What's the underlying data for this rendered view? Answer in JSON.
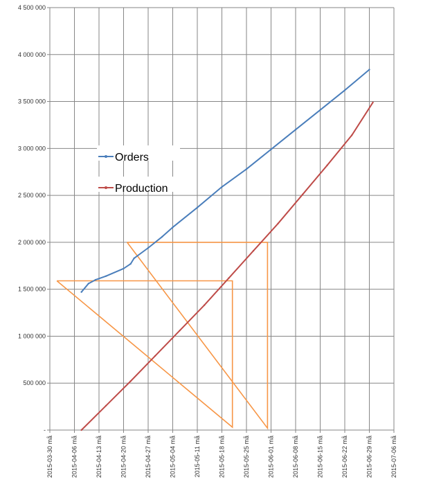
{
  "chart_data": {
    "type": "line",
    "title": "",
    "xlabel": "",
    "ylabel": "",
    "grid": true,
    "legend": "inside left, upper middle",
    "x_tick_labels": [
      "2015-03-30 må",
      "2015-04-06 må",
      "2015-04-13 må",
      "2015-04-20 må",
      "2015-04-27 må",
      "2015-05-04 må",
      "2015-05-11 må",
      "2015-05-18 må",
      "2015-05-25 må",
      "2015-06-01 må",
      "2015-06-08 må",
      "2015-06-15 må",
      "2015-06-22 må",
      "2015-06-29 må",
      "2015-07-06 må"
    ],
    "y_tick_labels": [
      "-",
      "500 000",
      "1 000 000",
      "1 500 000",
      "2 000 000",
      "2 500 000",
      "3 000 000",
      "3 500 000",
      "4 000 000",
      "4 500 000"
    ],
    "ylim": [
      0,
      4500000
    ],
    "xlim": [
      "2015-03-30",
      "2015-07-06"
    ],
    "series": [
      {
        "name": "Orders",
        "color": "#4a7ebb",
        "points": [
          [
            "2015-04-08",
            1470000
          ],
          [
            "2015-04-10",
            1560000
          ],
          [
            "2015-04-12",
            1600000
          ],
          [
            "2015-04-15",
            1640000
          ],
          [
            "2015-04-20",
            1720000
          ],
          [
            "2015-04-22",
            1770000
          ],
          [
            "2015-04-23",
            1830000
          ],
          [
            "2015-04-27",
            1940000
          ],
          [
            "2015-05-01",
            2060000
          ],
          [
            "2015-05-04",
            2160000
          ],
          [
            "2015-05-11",
            2370000
          ],
          [
            "2015-05-18",
            2590000
          ],
          [
            "2015-05-25",
            2780000
          ],
          [
            "2015-06-01",
            2990000
          ],
          [
            "2015-06-08",
            3200000
          ],
          [
            "2015-06-15",
            3410000
          ],
          [
            "2015-06-22",
            3620000
          ],
          [
            "2015-06-29",
            3840000
          ]
        ]
      },
      {
        "name": "Production",
        "color": "#be4b48",
        "points": [
          [
            "2015-04-08",
            0
          ],
          [
            "2015-04-15",
            260000
          ],
          [
            "2015-04-22",
            520000
          ],
          [
            "2015-04-29",
            790000
          ],
          [
            "2015-05-06",
            1060000
          ],
          [
            "2015-05-13",
            1330000
          ],
          [
            "2015-05-20",
            1620000
          ],
          [
            "2015-05-27",
            1910000
          ],
          [
            "2015-06-03",
            2200000
          ],
          [
            "2015-06-10",
            2510000
          ],
          [
            "2015-06-17",
            2820000
          ],
          [
            "2015-06-24",
            3140000
          ],
          [
            "2015-06-30",
            3490000
          ]
        ]
      }
    ],
    "annotations": {
      "color": "#f79646",
      "shapes": [
        [
          [
            "2015-04-01",
            1590000
          ],
          [
            "2015-05-21",
            1590000
          ],
          [
            "2015-05-21",
            30000
          ],
          [
            "2015-04-01",
            1590000
          ]
        ],
        [
          [
            "2015-04-21",
            2000000
          ],
          [
            "2015-05-31",
            2000000
          ],
          [
            "2015-05-31",
            20000
          ],
          [
            "2015-04-21",
            2000000
          ]
        ]
      ]
    }
  }
}
